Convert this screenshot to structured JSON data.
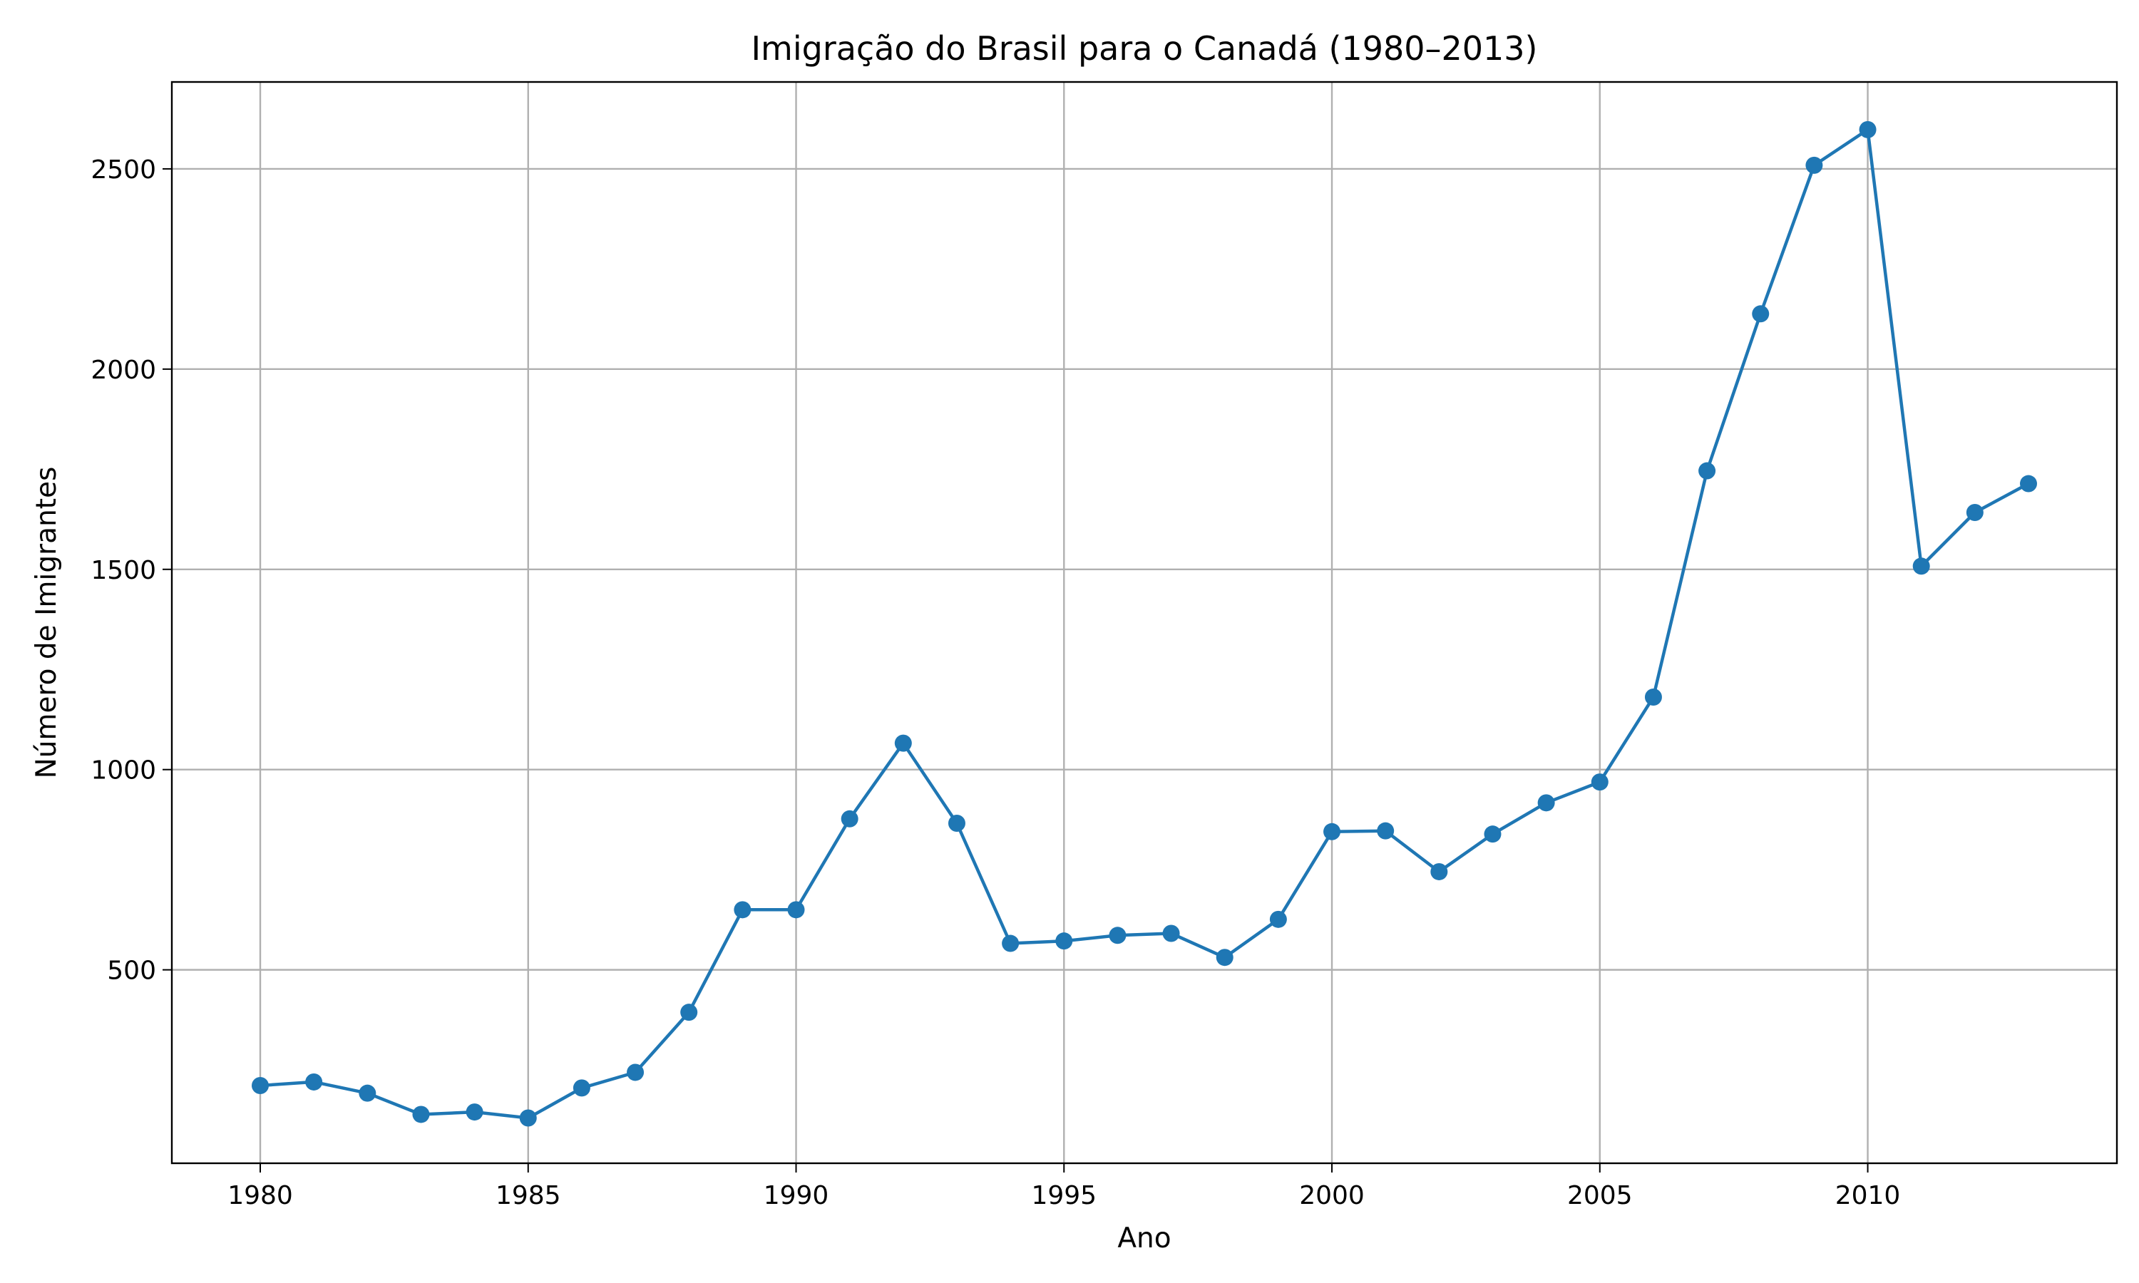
{
  "chart_data": {
    "type": "line",
    "title": "Imigração do Brasil para o Canadá (1980–2013)",
    "xlabel": "Ano",
    "ylabel": "Número de Imigrantes",
    "xlim": [
      1978.35,
      2014.65
    ],
    "ylim": [
      17,
      2717
    ],
    "xticks": [
      1980,
      1985,
      1990,
      1995,
      2000,
      2005,
      2010
    ],
    "yticks": [
      500,
      1000,
      1500,
      2000,
      2500
    ],
    "grid": true,
    "series": [
      {
        "color": "#1f77b4",
        "marker": "circle",
        "x": [
          1980,
          1981,
          1982,
          1983,
          1984,
          1985,
          1986,
          1987,
          1988,
          1989,
          1990,
          1991,
          1992,
          1993,
          1994,
          1995,
          1996,
          1997,
          1998,
          1999,
          2000,
          2001,
          2002,
          2003,
          2004,
          2005,
          2006,
          2007,
          2008,
          2009,
          2010,
          2011,
          2012,
          2013
        ],
        "y": [
          211,
          220,
          192,
          139,
          145,
          130,
          205,
          244,
          394,
          650,
          650,
          877,
          1066,
          866,
          566,
          572,
          586,
          591,
          531,
          626,
          845,
          847,
          745,
          839,
          917,
          969,
          1181,
          1746,
          2138,
          2509,
          2598,
          1508,
          1642,
          1714
        ]
      }
    ]
  }
}
